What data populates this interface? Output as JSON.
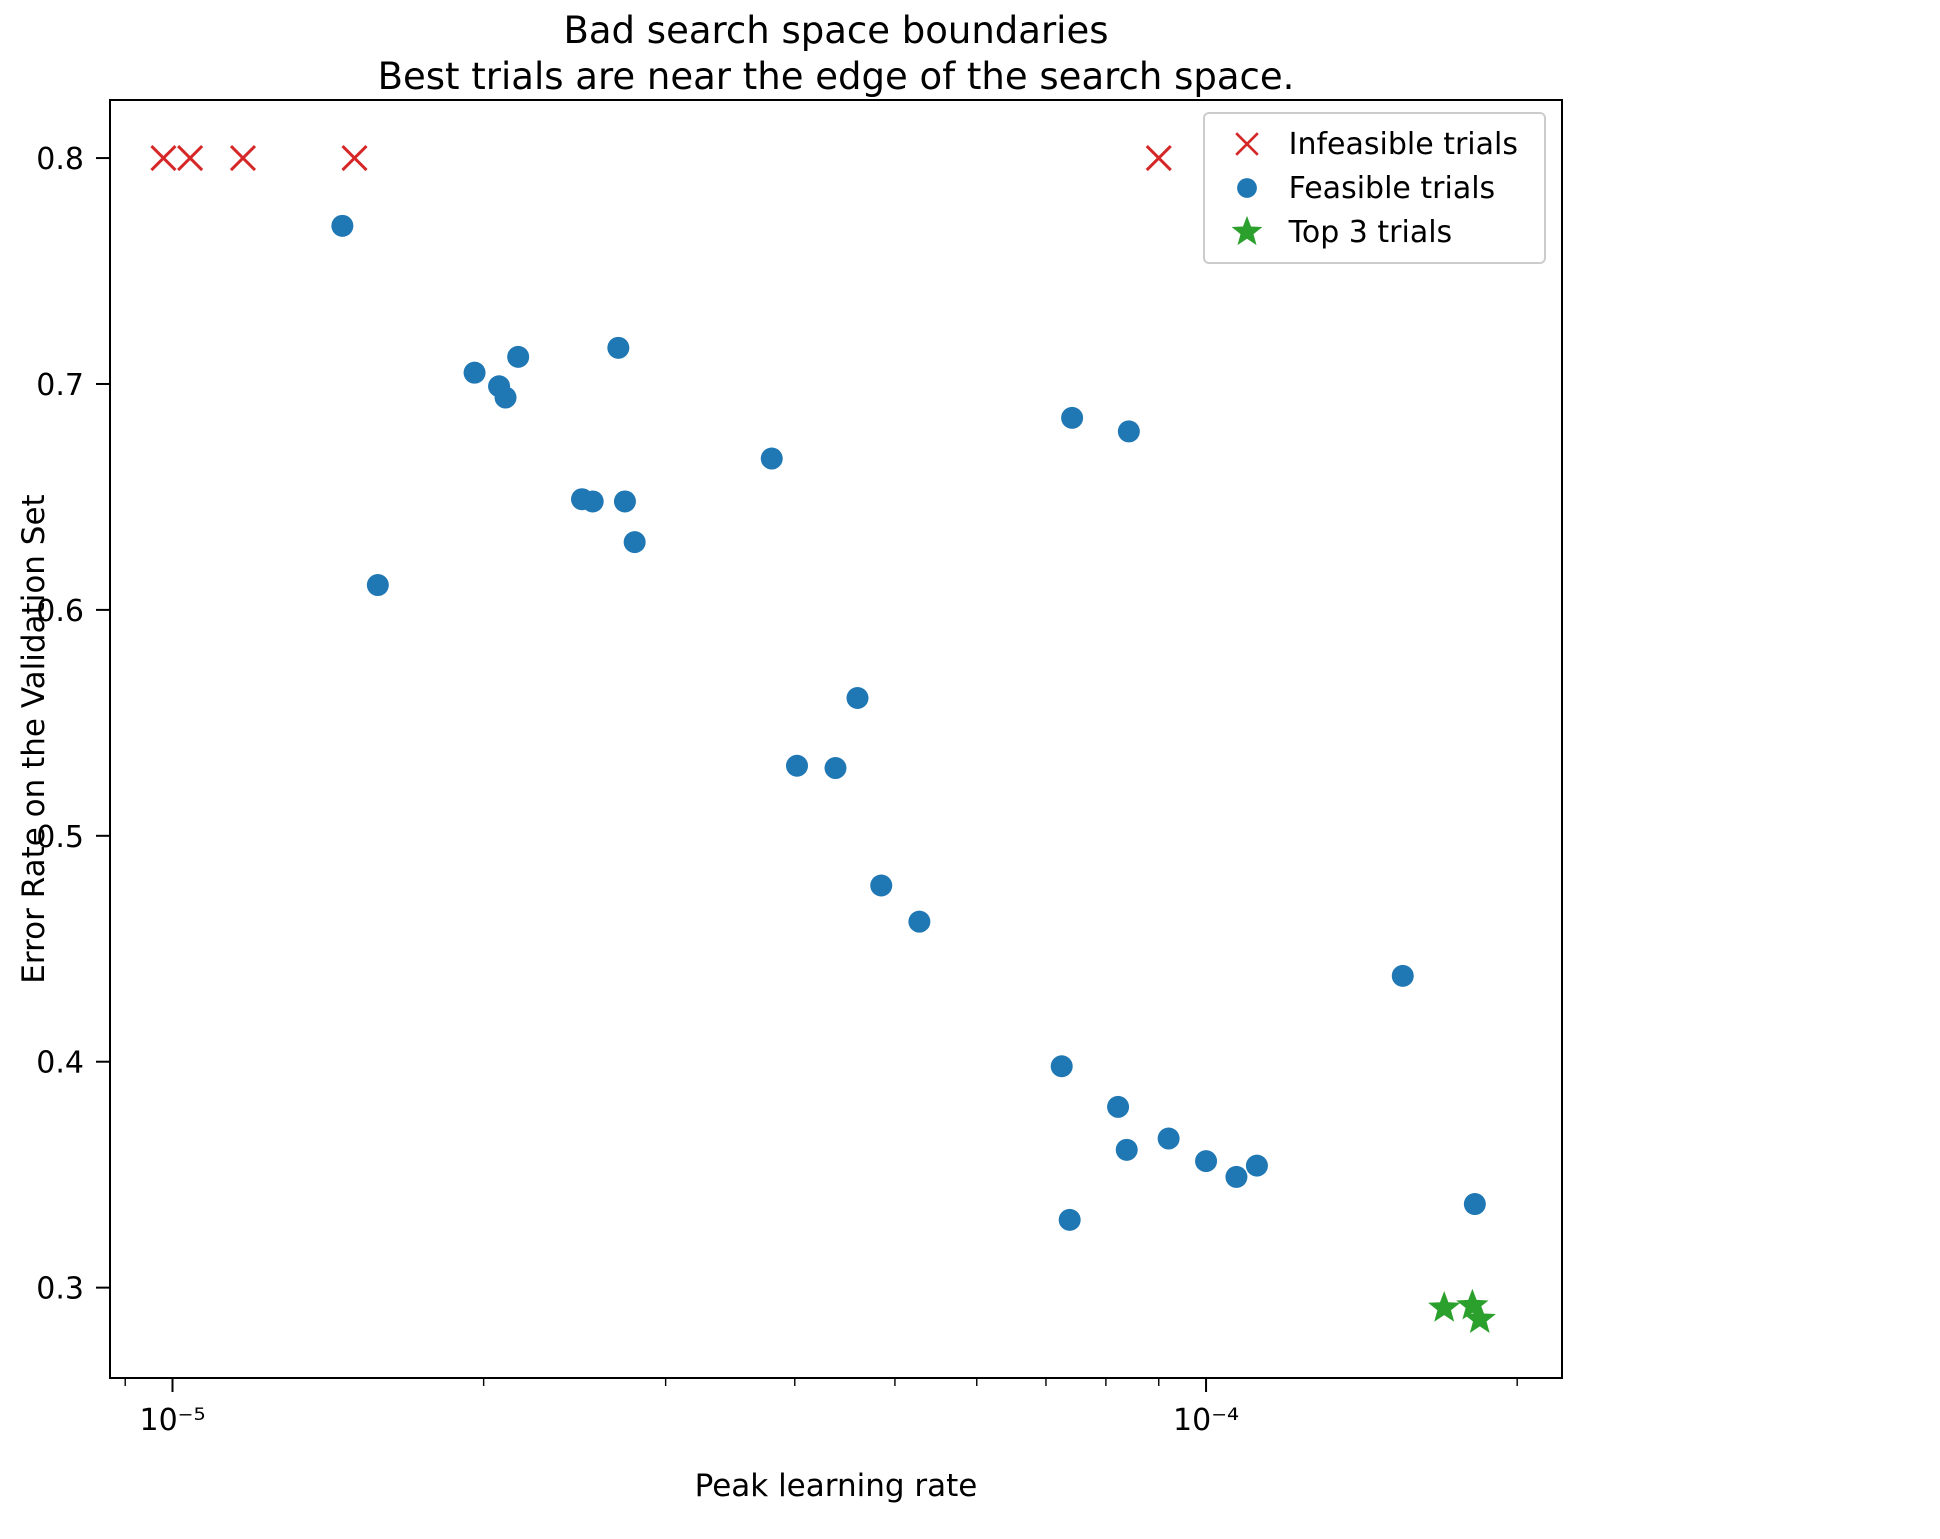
{
  "chart_data": {
    "type": "scatter",
    "title": "Bad search space boundaries",
    "subtitle": "Best trials are near the edge of the search space.",
    "xlabel": "Peak learning rate",
    "ylabel": "Error Rate on the Validation Set",
    "x_scale": "log",
    "xlim": [
      8.7e-06,
      0.000221
    ],
    "ylim": [
      0.26,
      0.8257
    ],
    "grid": false,
    "legend_position": "upper right",
    "x_ticks": [
      {
        "value": 1e-05,
        "label": "10⁻⁵"
      },
      {
        "value": 0.0001,
        "label": "10⁻⁴"
      }
    ],
    "x_minor_ticks": [
      9e-06,
      2e-05,
      3e-05,
      4e-05,
      5e-05,
      6e-05,
      7e-05,
      8e-05,
      9e-05,
      0.0002
    ],
    "y_ticks": [
      {
        "value": 0.3,
        "label": "0.3"
      },
      {
        "value": 0.4,
        "label": "0.4"
      },
      {
        "value": 0.5,
        "label": "0.5"
      },
      {
        "value": 0.6,
        "label": "0.6"
      },
      {
        "value": 0.7,
        "label": "0.7"
      },
      {
        "value": 0.8,
        "label": "0.8"
      }
    ],
    "series": [
      {
        "name": "infeasible_trials",
        "legend_label": "Infeasible trials",
        "marker": "x",
        "color": "#d62728",
        "points": [
          [
            9.8e-06,
            0.8
          ],
          [
            1.04e-05,
            0.8
          ],
          [
            1.17e-05,
            0.8
          ],
          [
            1.5e-05,
            0.8
          ],
          [
            9e-05,
            0.8
          ]
        ]
      },
      {
        "name": "feasible_trials",
        "legend_label": "Feasible trials",
        "marker": "circle",
        "color": "#1f77b4",
        "points": [
          [
            1.46e-05,
            0.77
          ],
          [
            1.58e-05,
            0.611
          ],
          [
            1.96e-05,
            0.705
          ],
          [
            2.07e-05,
            0.699
          ],
          [
            2.1e-05,
            0.694
          ],
          [
            2.16e-05,
            0.712
          ],
          [
            2.49e-05,
            0.649
          ],
          [
            2.55e-05,
            0.648
          ],
          [
            2.7e-05,
            0.716
          ],
          [
            2.74e-05,
            0.648
          ],
          [
            2.8e-05,
            0.63
          ],
          [
            3.8e-05,
            0.667
          ],
          [
            4.02e-05,
            0.531
          ],
          [
            4.38e-05,
            0.53
          ],
          [
            4.6e-05,
            0.561
          ],
          [
            4.85e-05,
            0.478
          ],
          [
            5.28e-05,
            0.462
          ],
          [
            7.25e-05,
            0.398
          ],
          [
            7.38e-05,
            0.33
          ],
          [
            7.42e-05,
            0.685
          ],
          [
            8.22e-05,
            0.38
          ],
          [
            8.38e-05,
            0.361
          ],
          [
            8.42e-05,
            0.679
          ],
          [
            9.2e-05,
            0.366
          ],
          [
            0.0001,
            0.356
          ],
          [
            0.000107,
            0.349
          ],
          [
            0.000112,
            0.354
          ],
          [
            0.000155,
            0.438
          ],
          [
            0.000182,
            0.337
          ]
        ]
      },
      {
        "name": "top3_trials",
        "legend_label": "Top 3 trials",
        "marker": "star",
        "color": "#2ca02c",
        "points": [
          [
            0.00017,
            0.291
          ],
          [
            0.000181,
            0.292
          ],
          [
            0.000184,
            0.286
          ]
        ]
      }
    ]
  }
}
